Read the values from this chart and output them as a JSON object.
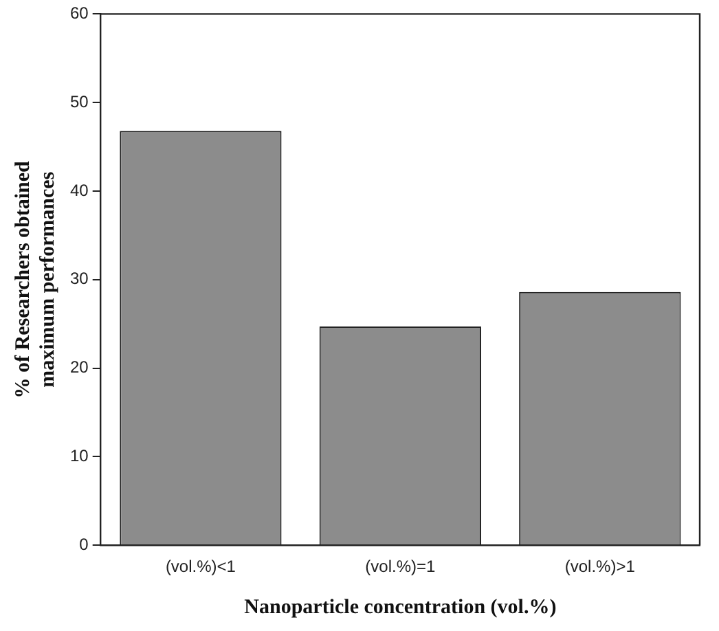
{
  "chart_data": {
    "type": "bar",
    "xlabel": "Nanoparticle concentration (vol.%)",
    "ylabel": "% of Researchers obtained\nmaximum performances",
    "categories": [
      "(vol.%)<1",
      "(vol.%)=1",
      "(vol.%)>1"
    ],
    "values": [
      46.8,
      24.7,
      28.6
    ],
    "color": "#8c8c8c",
    "ylim": [
      0,
      60
    ],
    "yticks": [
      0,
      10,
      20,
      30,
      40,
      50,
      60
    ],
    "grid": false,
    "legend": false
  }
}
